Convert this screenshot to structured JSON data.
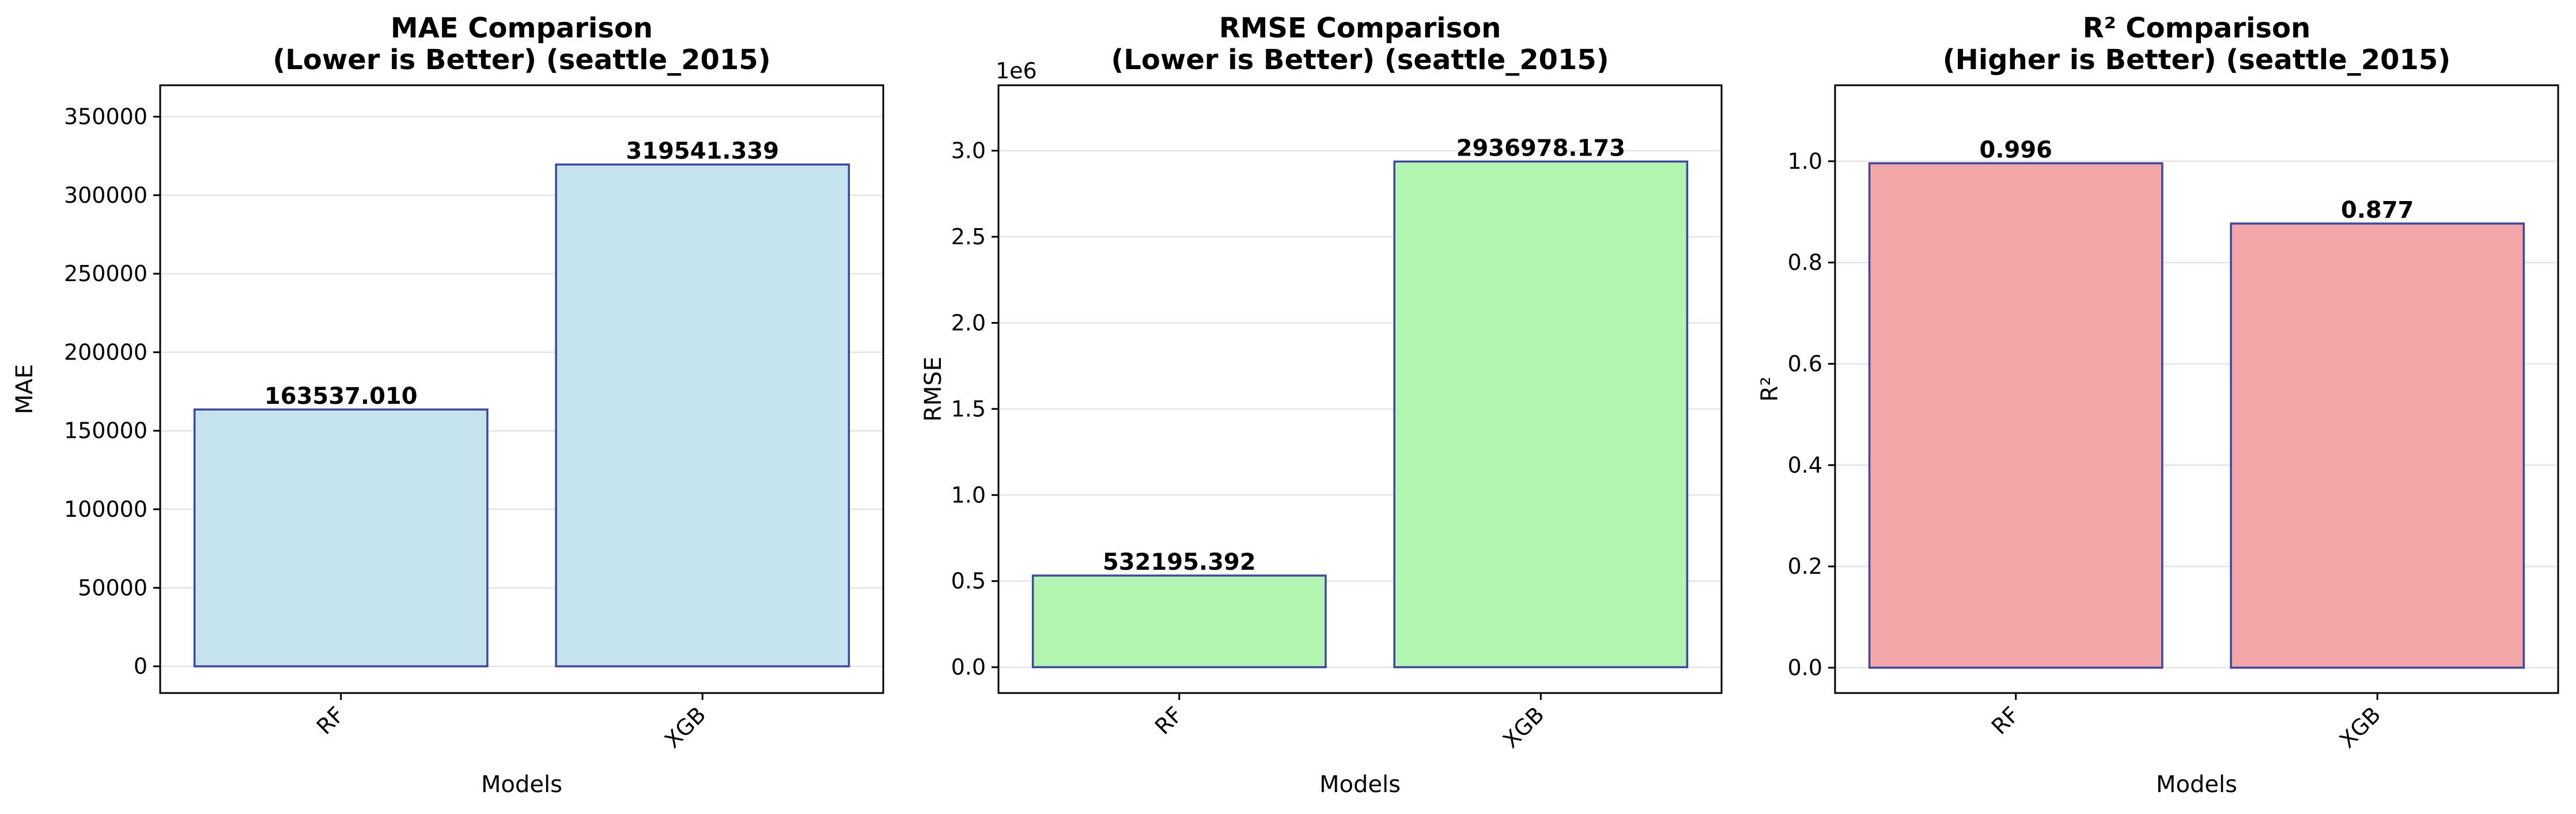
{
  "chart_data": [
    {
      "type": "bar",
      "title": "MAE Comparison\n(Lower is Better) (seattle_2015)",
      "xlabel": "Models",
      "ylabel": "MAE",
      "categories": [
        "RF",
        "XGB"
      ],
      "values": [
        163537.01,
        319541.339
      ],
      "value_labels": [
        "163537.010",
        "319541.339"
      ],
      "ylim": [
        -17000,
        370000
      ],
      "yticks": [
        0,
        50000,
        100000,
        150000,
        200000,
        250000,
        300000,
        350000
      ],
      "ytick_labels": [
        "0",
        "50000",
        "100000",
        "150000",
        "200000",
        "250000",
        "300000",
        "350000"
      ],
      "offset_text": "",
      "grid": "y",
      "bar_color": "#c5e3ed",
      "edge_color": "#3b47a3"
    },
    {
      "type": "bar",
      "title": "RMSE Comparison\n(Lower is Better) (seattle_2015)",
      "xlabel": "Models",
      "ylabel": "RMSE",
      "categories": [
        "RF",
        "XGB"
      ],
      "values": [
        0.532195392,
        2.936978173
      ],
      "value_labels": [
        "532195.392",
        "2936978.173"
      ],
      "ylim": [
        -0.15,
        3.38
      ],
      "yticks": [
        0.0,
        0.5,
        1.0,
        1.5,
        2.0,
        2.5,
        3.0
      ],
      "ytick_labels": [
        "0.0",
        "0.5",
        "1.0",
        "1.5",
        "2.0",
        "2.5",
        "3.0"
      ],
      "offset_text": "1e6",
      "grid": "y",
      "bar_color": "#b2f5b0",
      "edge_color": "#3b47a3"
    },
    {
      "type": "bar",
      "title": "R² Comparison\n(Higher is Better) (seattle_2015)",
      "xlabel": "Models",
      "ylabel": "R²",
      "categories": [
        "RF",
        "XGB"
      ],
      "values": [
        0.996,
        0.877
      ],
      "value_labels": [
        "0.996",
        "0.877"
      ],
      "ylim": [
        -0.05,
        1.15
      ],
      "yticks": [
        0.0,
        0.2,
        0.4,
        0.6,
        0.8,
        1.0
      ],
      "ytick_labels": [
        "0.0",
        "0.2",
        "0.4",
        "0.6",
        "0.8",
        "1.0"
      ],
      "offset_text": "",
      "grid": "y",
      "bar_color": "#f3a6a8",
      "edge_color": "#3b47a3"
    }
  ]
}
